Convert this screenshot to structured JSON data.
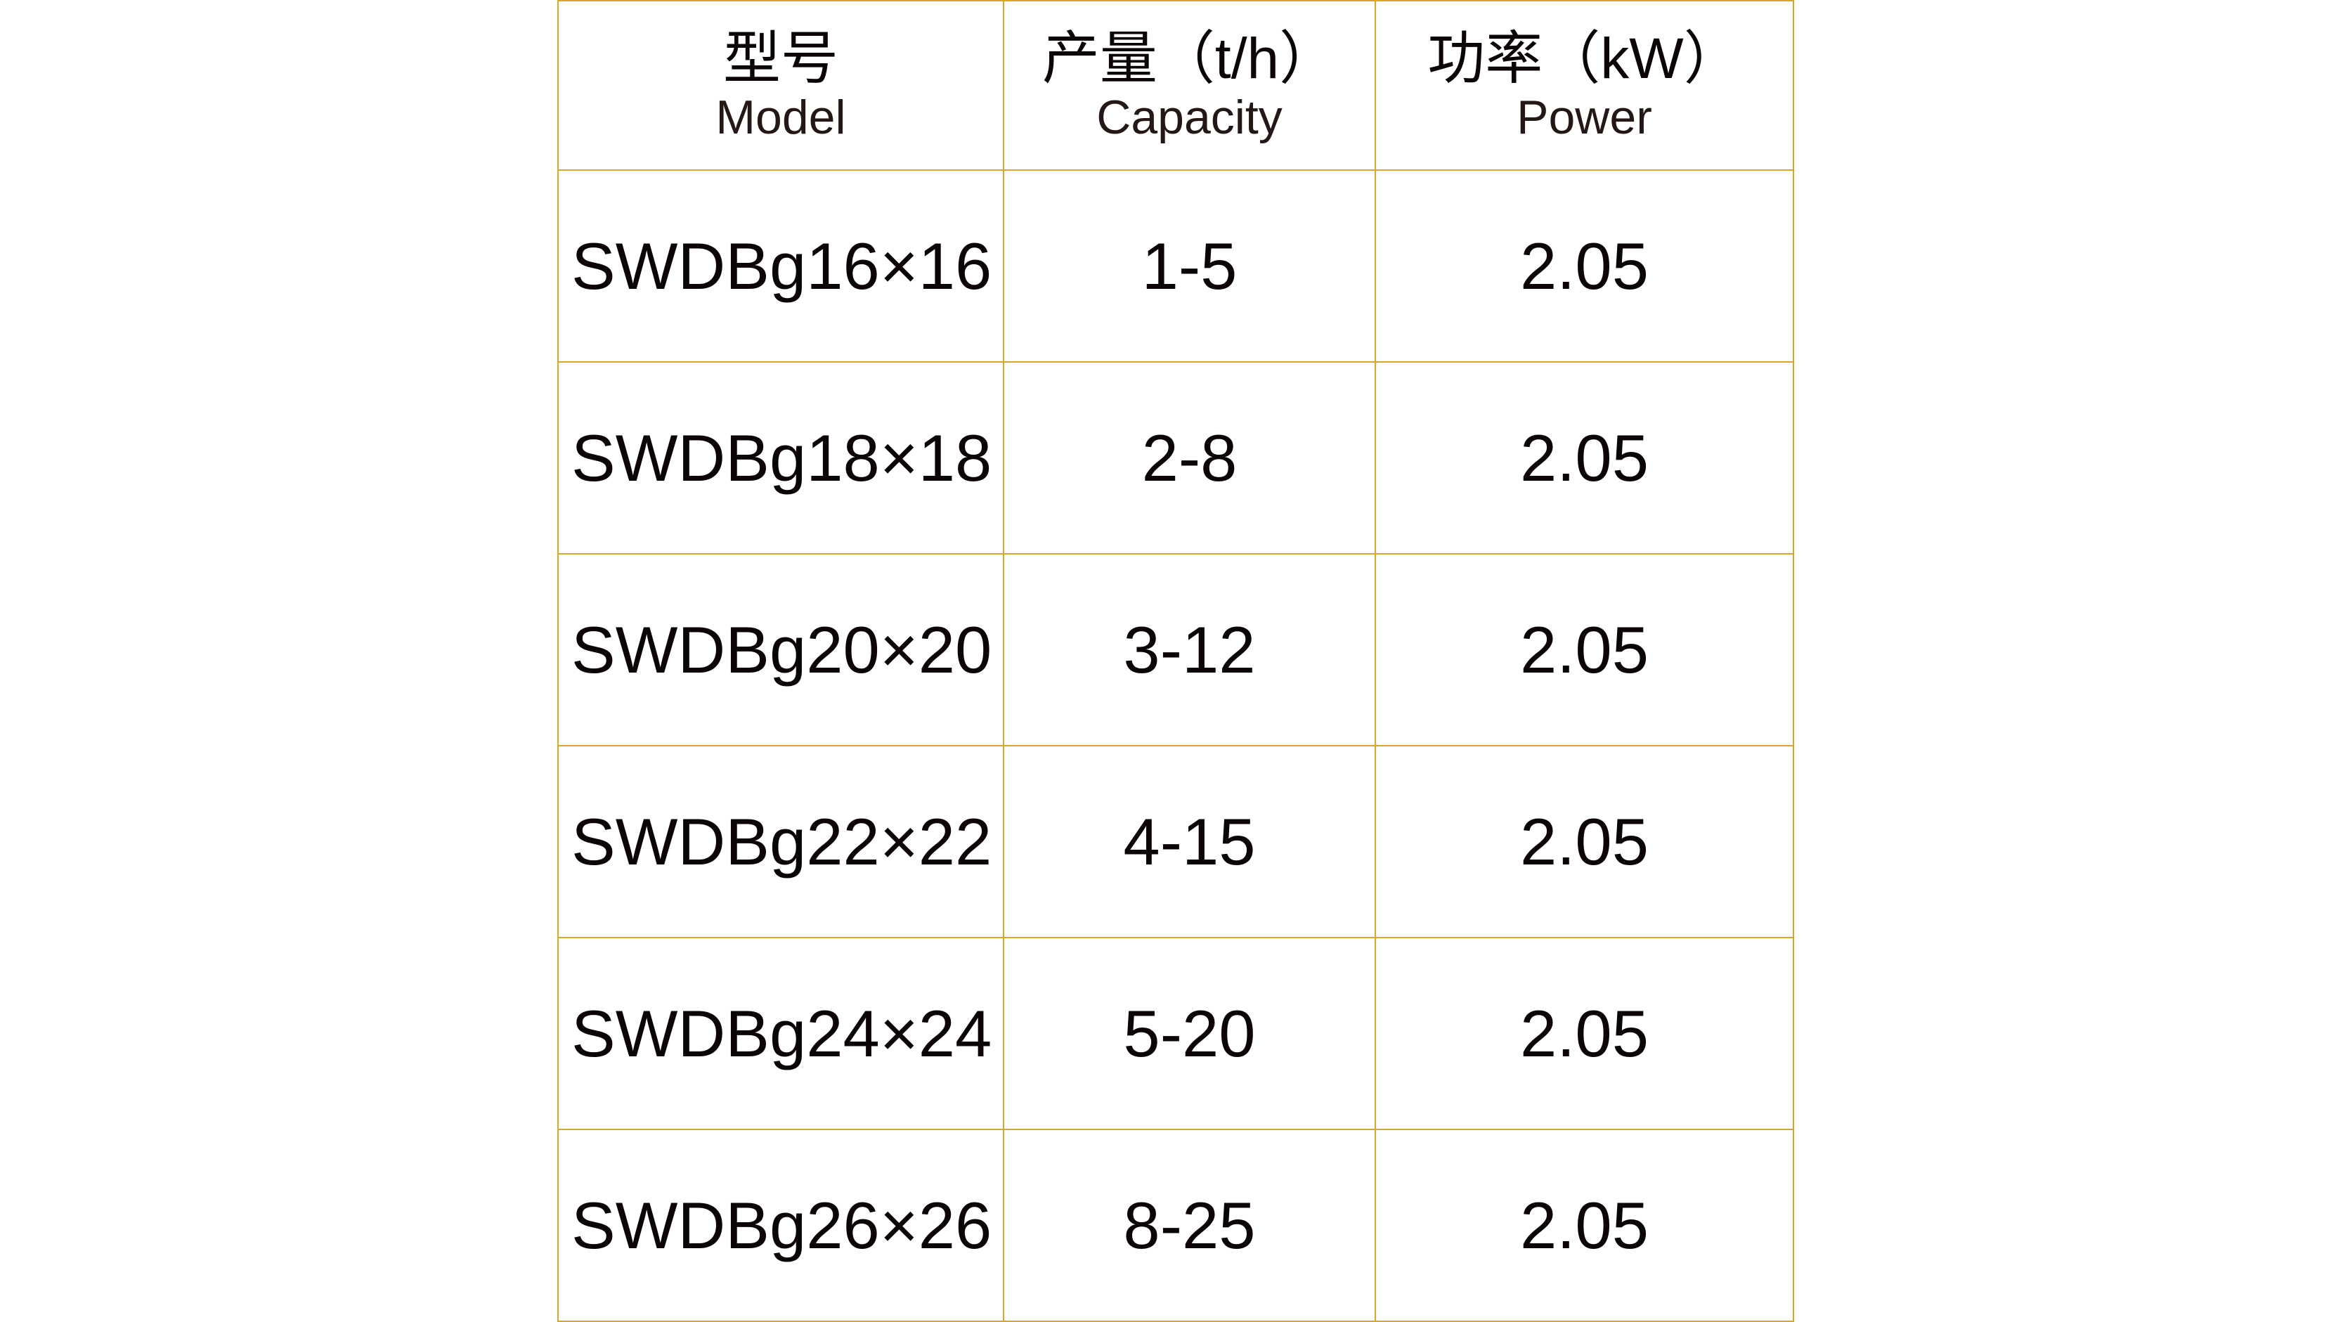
{
  "table": {
    "headers": [
      {
        "zh": "型号",
        "en": "Model"
      },
      {
        "zh": "产量（t/h）",
        "en": "Capacity"
      },
      {
        "zh": "功率（kW）",
        "en": "Power"
      }
    ],
    "rows": [
      {
        "model": "SWDBg16×16",
        "capacity": "1-5",
        "power": "2.05"
      },
      {
        "model": "SWDBg18×18",
        "capacity": "2-8",
        "power": "2.05"
      },
      {
        "model": "SWDBg20×20",
        "capacity": "3-12",
        "power": "2.05"
      },
      {
        "model": "SWDBg22×22",
        "capacity": "4-15",
        "power": "2.05"
      },
      {
        "model": "SWDBg24×24",
        "capacity": "5-20",
        "power": "2.05"
      },
      {
        "model": "SWDBg26×26",
        "capacity": "8-25",
        "power": "2.05"
      }
    ]
  },
  "colors": {
    "border": "#d8a72a",
    "text": "#0b0506"
  }
}
